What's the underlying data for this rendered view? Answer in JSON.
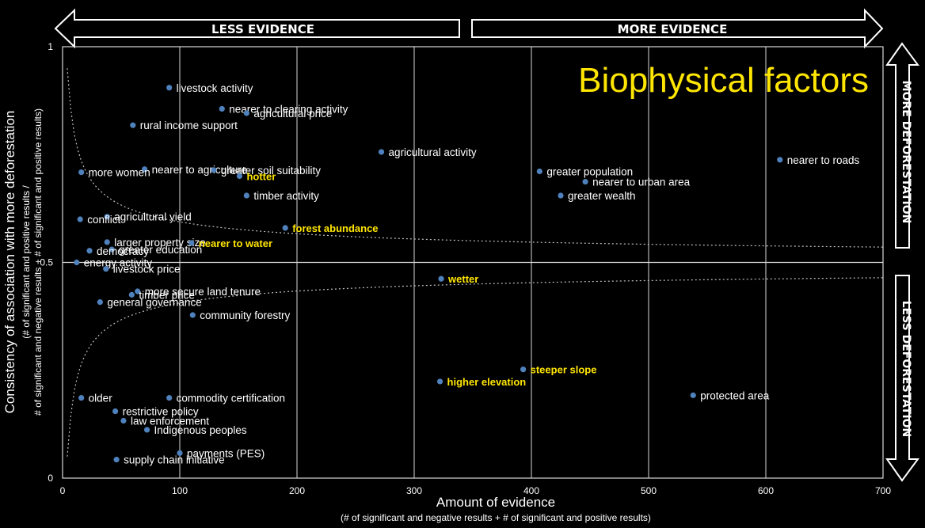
{
  "banners": {
    "top_left": "LESS EVIDENCE",
    "top_right": "MORE EVIDENCE",
    "right_top": "MORE DEFORESTATION",
    "right_bottom": "LESS DEFORESTATION"
  },
  "colors": {
    "background": "#000000",
    "point": "#4f81bd",
    "label_default": "#ffffff",
    "label_highlight": "#ffe600",
    "title": "#ffe600",
    "grid": "#d9d9d9"
  },
  "chart_data": {
    "type": "scatter",
    "title": "Biophysical factors",
    "xlabel": "Amount of evidence",
    "xlabel_sub": "(# of significant and negative results + # of significant and positive results)",
    "ylabel": "Consistency of association with more deforestation",
    "ylabel_sub1": "(# of significant and positive results /",
    "ylabel_sub2": "# of significant and negative results + # of significant and positive results)",
    "xlim": [
      0,
      700
    ],
    "ylim": [
      0,
      1
    ],
    "xticks": [
      0,
      100,
      200,
      300,
      400,
      500,
      600,
      700
    ],
    "yticks": [
      {
        "value": 0,
        "label": "0"
      },
      {
        "value": 0.5,
        "label": "0.5"
      },
      {
        "value": 1,
        "label": "1"
      }
    ],
    "grid": "vertical",
    "reference_line_y": 0.5,
    "points": [
      {
        "label": "livestock activity",
        "x": 91,
        "y": 0.905,
        "highlight": false
      },
      {
        "label": "nearer to clearing activity",
        "x": 136,
        "y": 0.856,
        "highlight": false
      },
      {
        "label": "agricultural price",
        "x": 157,
        "y": 0.846,
        "highlight": false
      },
      {
        "label": "rural income support",
        "x": 60,
        "y": 0.818,
        "highlight": false
      },
      {
        "label": "agricultural activity",
        "x": 272,
        "y": 0.756,
        "highlight": false
      },
      {
        "label": "nearer to roads",
        "x": 612,
        "y": 0.738,
        "highlight": false
      },
      {
        "label": "nearer to agriculture",
        "x": 70,
        "y": 0.716,
        "highlight": false
      },
      {
        "label": "greater soil suitability",
        "x": 129,
        "y": 0.714,
        "highlight": false
      },
      {
        "label": "more women",
        "x": 16,
        "y": 0.709,
        "highlight": false
      },
      {
        "label": "hotter",
        "x": 151,
        "y": 0.7,
        "highlight": true
      },
      {
        "label": "greater population",
        "x": 407,
        "y": 0.711,
        "highlight": false
      },
      {
        "label": "nearer to urban area",
        "x": 446,
        "y": 0.687,
        "highlight": false
      },
      {
        "label": "timber activity",
        "x": 157,
        "y": 0.655,
        "highlight": false
      },
      {
        "label": "greater wealth",
        "x": 425,
        "y": 0.655,
        "highlight": false
      },
      {
        "label": "agricultural yield",
        "x": 38,
        "y": 0.606,
        "highlight": false
      },
      {
        "label": "conflict",
        "x": 15,
        "y": 0.6,
        "highlight": false
      },
      {
        "label": "forest abundance",
        "x": 190,
        "y": 0.58,
        "highlight": true
      },
      {
        "label": "larger property size",
        "x": 38,
        "y": 0.547,
        "highlight": false
      },
      {
        "label": "nearer to water",
        "x": 110,
        "y": 0.545,
        "highlight": true
      },
      {
        "label": "greater education",
        "x": 42,
        "y": 0.53,
        "highlight": false
      },
      {
        "label": "democracy",
        "x": 23,
        "y": 0.527,
        "highlight": false
      },
      {
        "label": "energy activity",
        "x": 12,
        "y": 0.5,
        "highlight": false
      },
      {
        "label": "livestock price",
        "x": 37,
        "y": 0.485,
        "highlight": false
      },
      {
        "label": "wetter",
        "x": 323,
        "y": 0.462,
        "highlight": true
      },
      {
        "label": "more secure land tenure",
        "x": 64,
        "y": 0.433,
        "highlight": false
      },
      {
        "label": "timber price",
        "x": 59,
        "y": 0.425,
        "highlight": false
      },
      {
        "label": "general governance",
        "x": 32,
        "y": 0.408,
        "highlight": false
      },
      {
        "label": "community forestry",
        "x": 111,
        "y": 0.378,
        "highlight": false
      },
      {
        "label": "steeper slope",
        "x": 393,
        "y": 0.252,
        "highlight": true
      },
      {
        "label": "higher elevation",
        "x": 322,
        "y": 0.224,
        "highlight": true
      },
      {
        "label": "older",
        "x": 16,
        "y": 0.186,
        "highlight": false
      },
      {
        "label": "commodity certification",
        "x": 91,
        "y": 0.186,
        "highlight": false
      },
      {
        "label": "protected area",
        "x": 538,
        "y": 0.192,
        "highlight": false
      },
      {
        "label": "restrictive policy",
        "x": 45,
        "y": 0.155,
        "highlight": false
      },
      {
        "label": "law enforcement",
        "x": 52,
        "y": 0.133,
        "highlight": false
      },
      {
        "label": "Indigenous peoples",
        "x": 72,
        "y": 0.112,
        "highlight": false
      },
      {
        "label": "payments (PES)",
        "x": 100,
        "y": 0.058,
        "highlight": false
      },
      {
        "label": "supply chain initiative",
        "x": 46,
        "y": 0.043,
        "highlight": false
      }
    ]
  }
}
